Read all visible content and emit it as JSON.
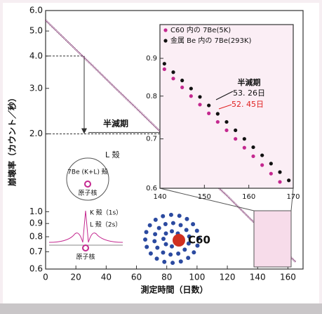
{
  "chart_data": [
    {
      "type": "line",
      "x_label": "測定時間（日数）",
      "y_label": "崩壊率（カウント／秒）",
      "log_y": true,
      "color": "#7a2d6a",
      "x": [
        0,
        15,
        30,
        45,
        60,
        75,
        90,
        105,
        120,
        135,
        150,
        165
      ],
      "values": [
        5.5,
        4.52,
        3.72,
        3.05,
        2.51,
        2.06,
        1.7,
        1.39,
        1.15,
        0.94,
        0.78,
        0.64
      ],
      "xlim": [
        0,
        170
      ],
      "ylim": [
        0.6,
        6
      ],
      "xticks": [
        0,
        20,
        40,
        60,
        80,
        100,
        120,
        140,
        160
      ],
      "yticks": [
        {
          "value": 0.6,
          "label": "0.6"
        },
        {
          "value": 0.7,
          "label": "0.7"
        },
        {
          "value": 0.8,
          "label": "0.8"
        },
        {
          "value": 0.9,
          "label": "0.9"
        },
        {
          "value": 1,
          "label": "1.0"
        },
        {
          "value": 2,
          "label": "2.0"
        },
        {
          "value": 3,
          "label": "3.0"
        },
        {
          "value": 4,
          "label": "4.0"
        },
        {
          "value": 5,
          "label": "5.0"
        },
        {
          "value": 6,
          "label": "6.0"
        }
      ],
      "annotation": "半減期"
    },
    {
      "type": "scatter",
      "log_y": true,
      "xlim": [
        140,
        170
      ],
      "ylim": [
        0.6,
        1.0
      ],
      "xticks": [
        140,
        150,
        160,
        170
      ],
      "yticks": [
        {
          "value": 0.6,
          "label": "0.6"
        },
        {
          "value": 0.7,
          "label": "0.7"
        },
        {
          "value": 0.8,
          "label": "0.8"
        },
        {
          "value": 0.9,
          "label": "0.9"
        }
      ],
      "series": [
        {
          "name": "C60 内の 7Be(5K)",
          "color": "#c4288f",
          "x": [
            141,
            143,
            145,
            147,
            149,
            151,
            153,
            155,
            157,
            159,
            161,
            163,
            165,
            167
          ],
          "values": [
            0.87,
            0.845,
            0.822,
            0.8,
            0.779,
            0.758,
            0.738,
            0.719,
            0.7,
            0.681,
            0.663,
            0.645,
            0.628,
            0.612
          ]
        },
        {
          "name": "金属 Be 内の 7Be(293K)",
          "color": "#111111",
          "x": [
            141,
            143,
            145,
            147,
            149,
            151,
            153,
            155,
            157,
            159,
            161,
            163,
            165,
            167,
            169
          ],
          "values": [
            0.885,
            0.862,
            0.84,
            0.819,
            0.798,
            0.777,
            0.757,
            0.738,
            0.719,
            0.7,
            0.682,
            0.665,
            0.648,
            0.631,
            0.615
          ]
        }
      ],
      "annotations": {
        "title": "半減期",
        "black": "53. 26日",
        "red": "52. 45日"
      }
    }
  ],
  "diagram": {
    "l_shell": "L 殻",
    "shell_label": "7Be (K+L) 殻",
    "nucleus_top": "原子核",
    "k_orbital": "K 殻（1s）",
    "l_orbital": "L 殻（2s）",
    "nucleus_bottom": "原子核",
    "c60": "C60"
  }
}
